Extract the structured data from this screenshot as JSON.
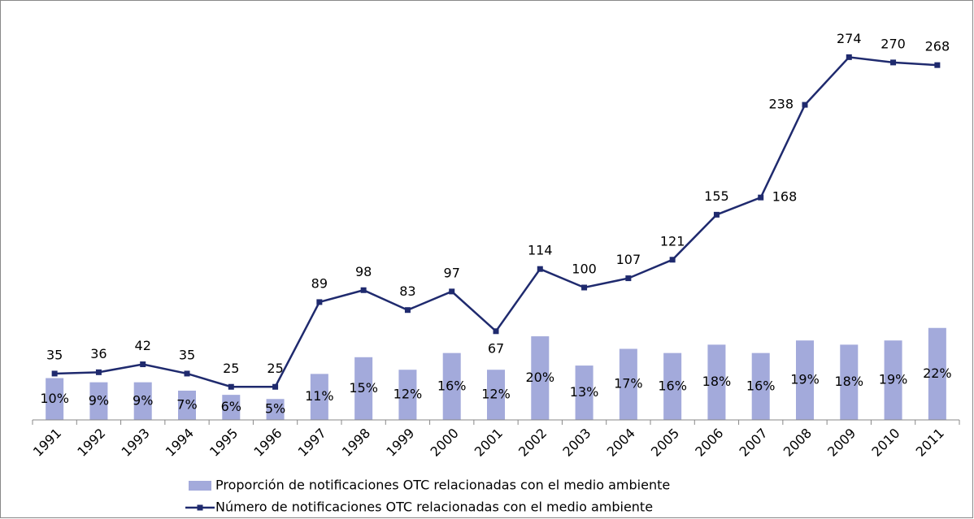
{
  "chart_data": {
    "type": "bar",
    "categories": [
      "1991",
      "1992",
      "1993",
      "1994",
      "1995",
      "1996",
      "1997",
      "1998",
      "1999",
      "2000",
      "2001",
      "2002",
      "2003",
      "2004",
      "2005",
      "2006",
      "2007",
      "2008",
      "2009",
      "2010",
      "2011"
    ],
    "series": [
      {
        "name": "Proporción de notificaciones OTC relacionadas con el medio ambiente",
        "type": "bar",
        "axis": "y2",
        "color": "#a3aadb",
        "values": [
          10,
          9,
          9,
          7,
          6,
          5,
          11,
          15,
          12,
          16,
          12,
          20,
          13,
          17,
          16,
          18,
          16,
          19,
          18,
          19,
          22
        ],
        "value_labels": [
          "10%",
          "9%",
          "9%",
          "7%",
          "6%",
          "5%",
          "11%",
          "15%",
          "12%",
          "16%",
          "12%",
          "20%",
          "13%",
          "17%",
          "16%",
          "18%",
          "16%",
          "19%",
          "18%",
          "19%",
          "22%"
        ]
      },
      {
        "name": "Número de notificaciones OTC relacionadas con el medio ambiente",
        "type": "line",
        "color": "#1f2a6e",
        "values": [
          35,
          36,
          42,
          35,
          25,
          25,
          89,
          98,
          83,
          97,
          67,
          114,
          100,
          107,
          121,
          155,
          168,
          238,
          274,
          270,
          268
        ]
      }
    ],
    "ylim": [
      0,
      300
    ],
    "y2lim": [
      0,
      95
    ],
    "legend": "bottom"
  }
}
